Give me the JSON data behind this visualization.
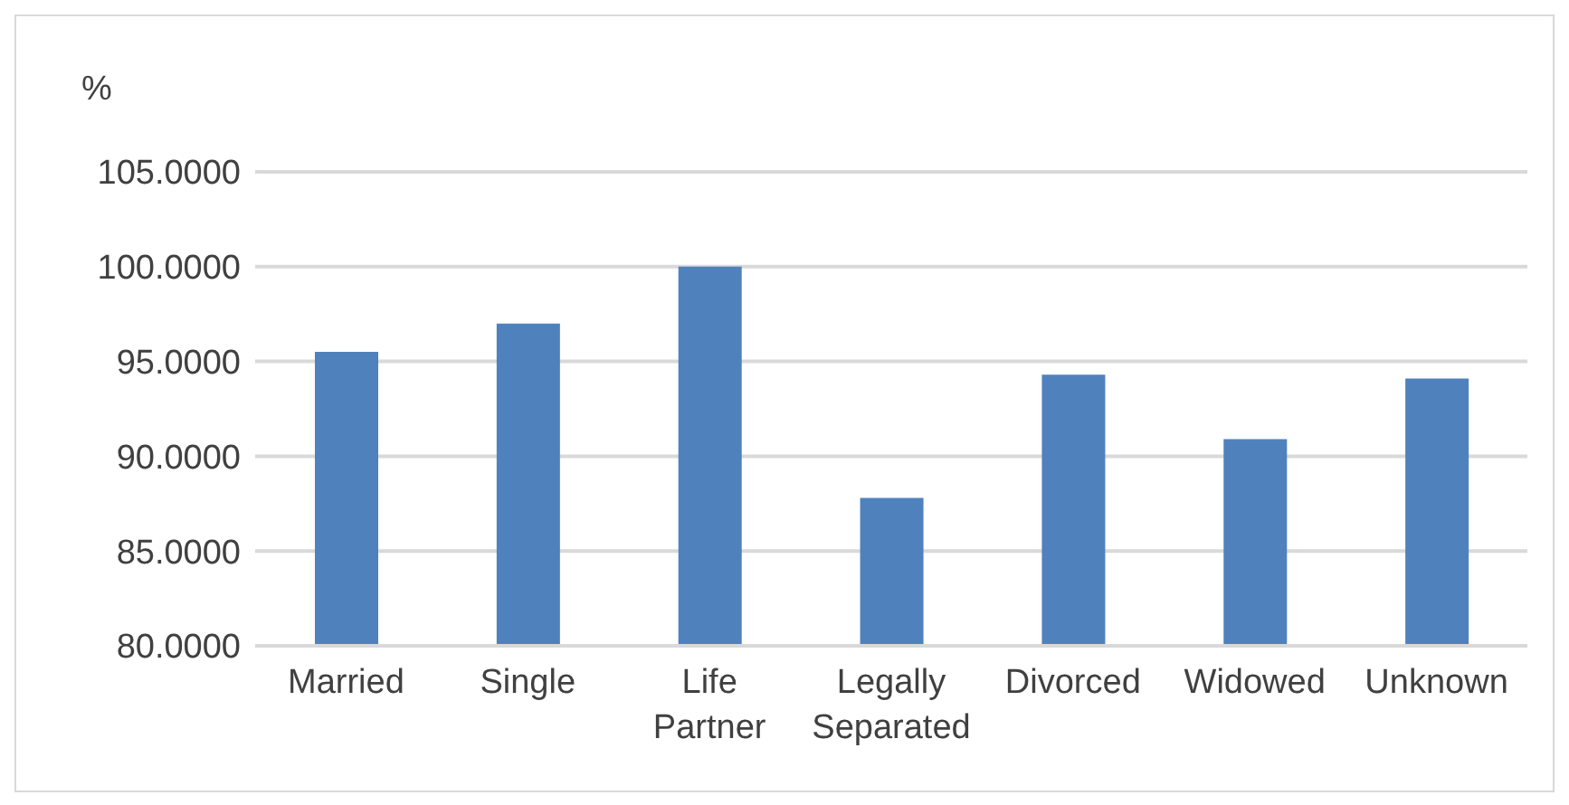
{
  "chart_data": {
    "type": "bar",
    "ylabel": "%",
    "categories": [
      "Married",
      "Single",
      "Life Partner",
      "Legally Separated",
      "Divorced",
      "Widowed",
      "Unknown"
    ],
    "values": [
      95.5,
      97.0,
      100.0,
      87.8,
      94.3,
      90.9,
      94.1
    ],
    "color": "#4f81bd",
    "ylim": [
      80,
      105
    ],
    "yticks": [
      {
        "value": 80,
        "label": "80.0000"
      },
      {
        "value": 85,
        "label": "85.0000"
      },
      {
        "value": 90,
        "label": "90.0000"
      },
      {
        "value": 95,
        "label": "95.0000"
      },
      {
        "value": 100,
        "label": "100.0000"
      },
      {
        "value": 105,
        "label": "105.0000"
      }
    ],
    "grid": "y"
  }
}
